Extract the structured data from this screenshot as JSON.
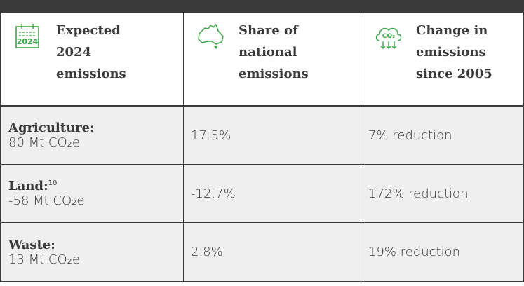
{
  "header": {
    "columns": [
      {
        "icon_text": "2024",
        "title": "Expected 2024 emissions"
      },
      {
        "title": "Share of national emissions"
      },
      {
        "icon_text": "CO₂",
        "title": "Change in emissions since 2005"
      }
    ]
  },
  "table": {
    "rows": [
      {
        "sector": "Agriculture:",
        "emissions": "80 Mt CO₂e",
        "share": "17.5%",
        "change": "7% reduction"
      },
      {
        "sector": "Land:",
        "note": "10",
        "emissions": "-58 Mt CO₂e",
        "share": "-12.7%",
        "change": "172% reduction"
      },
      {
        "sector": "Waste:",
        "emissions": "13 Mt CO₂e",
        "share": "2.8%",
        "change": "19% reduction"
      }
    ]
  }
}
